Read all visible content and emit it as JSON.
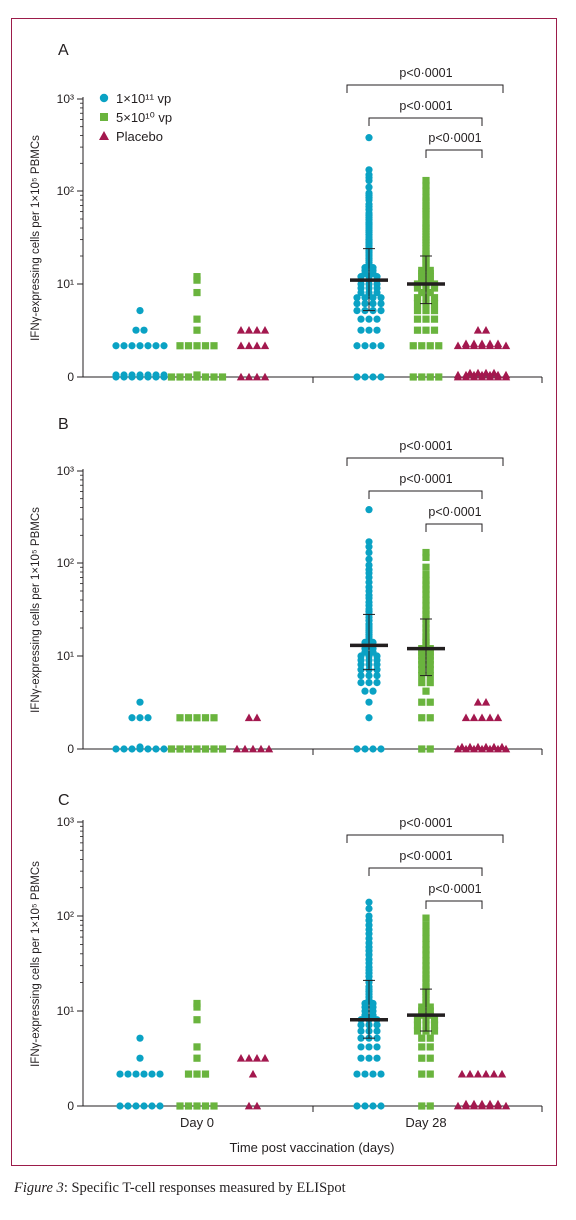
{
  "figure": {
    "caption_label": "Figure 3",
    "caption_text": ": Specific T-cell responses measured by ELISpot"
  },
  "colors": {
    "dose_high": "#0aa2c4",
    "dose_low": "#6ab43e",
    "placebo": "#a3184e",
    "frame": "#9c1c4a"
  },
  "shared": {
    "ylabel": "IFNγ-expressing cells per 1×10⁵ PBMCs",
    "xlabel": "Time post vaccination (days)",
    "categories": [
      "Day 0",
      "Day 28"
    ],
    "y_ticks": [
      {
        "value": 0,
        "label": "0"
      },
      {
        "value": 10,
        "label": "10¹"
      },
      {
        "value": 100,
        "label": "10²"
      },
      {
        "value": 1000,
        "label": "10³"
      }
    ]
  },
  "legend": [
    {
      "label": "1×10¹¹ vp",
      "marker": "circle",
      "color": "#0aa2c4"
    },
    {
      "label": "5×10¹⁰ vp",
      "marker": "square",
      "color": "#6ab43e"
    },
    {
      "label": "Placebo",
      "marker": "triangle",
      "color": "#a3184e"
    }
  ],
  "chart_data": [
    {
      "type": "scatter",
      "panel_label": "A",
      "ylabel": "IFNγ-expressing cells per 1×10⁵ PBMCs",
      "y_scale": "log (with 0)",
      "ylim": [
        0,
        1000
      ],
      "series": [
        {
          "name": "1×10¹¹ vp",
          "day": "Day 0",
          "marker": "circle",
          "values": [
            5,
            3,
            3,
            2,
            2,
            2,
            2,
            2,
            2,
            2,
            0,
            0,
            0,
            0,
            0,
            0,
            0,
            0,
            0,
            0,
            0,
            0,
            0,
            0
          ]
        },
        {
          "name": "5×10¹⁰ vp",
          "day": "Day 0",
          "marker": "square",
          "values": [
            12,
            11,
            8,
            4,
            3,
            2,
            2,
            2,
            2,
            2,
            0,
            0,
            0,
            0,
            0,
            0,
            0,
            0
          ]
        },
        {
          "name": "Placebo",
          "day": "Day 0",
          "marker": "triangle",
          "values": [
            3,
            3,
            3,
            3,
            2,
            2,
            2,
            2,
            0,
            0,
            0,
            0
          ]
        },
        {
          "name": "1×10¹¹ vp",
          "day": "Day 28",
          "marker": "circle",
          "median": 11,
          "iqr": [
            5,
            24
          ],
          "values": [
            380,
            170,
            150,
            140,
            130,
            110,
            95,
            90,
            85,
            80,
            72,
            68,
            63,
            58,
            55,
            52,
            49,
            46,
            44,
            42,
            40,
            38,
            36,
            34,
            32,
            30,
            29,
            28,
            27,
            26,
            25,
            24,
            23,
            22,
            21,
            20,
            19,
            18,
            17,
            16,
            15,
            15,
            14,
            14,
            13,
            13,
            12,
            12,
            12,
            11,
            11,
            11,
            10,
            10,
            10,
            9,
            9,
            9,
            8,
            8,
            8,
            7,
            7,
            7,
            7,
            6,
            6,
            6,
            6,
            5,
            5,
            5,
            5,
            4,
            4,
            4,
            3,
            3,
            3,
            2,
            2,
            2,
            2,
            0,
            0,
            0,
            0
          ]
        },
        {
          "name": "5×10¹⁰ vp",
          "day": "Day 28",
          "marker": "square",
          "median": 10,
          "iqr": [
            6,
            20
          ],
          "values": [
            130,
            115,
            100,
            85,
            78,
            70,
            65,
            60,
            55,
            50,
            45,
            42,
            40,
            37,
            34,
            32,
            30,
            28,
            26,
            24,
            22,
            21,
            20,
            19,
            18,
            17,
            16,
            15,
            14,
            14,
            13,
            13,
            12,
            12,
            11,
            11,
            10,
            10,
            10,
            9,
            9,
            9,
            8,
            8,
            7,
            7,
            7,
            6,
            6,
            6,
            5,
            5,
            5,
            4,
            4,
            4,
            3,
            3,
            3,
            2,
            2,
            2,
            2,
            0,
            0,
            0,
            0
          ]
        },
        {
          "name": "Placebo",
          "day": "Day 28",
          "marker": "triangle",
          "values": [
            3,
            3,
            2,
            2,
            2,
            2,
            2,
            2,
            2,
            2,
            2,
            2,
            2,
            2,
            0,
            0,
            0,
            0,
            0,
            0,
            0,
            0,
            0,
            0,
            0,
            0,
            0,
            0,
            0,
            0,
            0,
            0
          ]
        }
      ],
      "comparisons": [
        {
          "label": "p<0·0001",
          "from": "1×10¹¹ vp Day 28",
          "to": "Placebo Day 28"
        },
        {
          "label": "p<0·0001",
          "from": "1×10¹¹ vp Day 28",
          "to": "Placebo Day 28"
        },
        {
          "label": "p<0·0001",
          "from": "5×10¹⁰ vp Day 28",
          "to": "Placebo Day 28"
        }
      ]
    },
    {
      "type": "scatter",
      "panel_label": "B",
      "ylabel": "IFNγ-expressing cells per 1×10⁵ PBMCs",
      "y_scale": "log (with 0)",
      "ylim": [
        0,
        1000
      ],
      "series": [
        {
          "name": "1×10¹¹ vp",
          "day": "Day 0",
          "marker": "circle",
          "values": [
            3,
            2,
            2,
            2,
            0,
            0,
            0,
            0,
            0,
            0,
            0,
            0
          ]
        },
        {
          "name": "5×10¹⁰ vp",
          "day": "Day 0",
          "marker": "square",
          "values": [
            2,
            2,
            2,
            2,
            2,
            0,
            0,
            0,
            0,
            0,
            0,
            0
          ]
        },
        {
          "name": "Placebo",
          "day": "Day 0",
          "marker": "triangle",
          "values": [
            2,
            2,
            0,
            0,
            0,
            0,
            0
          ]
        },
        {
          "name": "1×10¹¹ vp",
          "day": "Day 28",
          "marker": "circle",
          "median": 13,
          "iqr": [
            7,
            28
          ],
          "values": [
            380,
            170,
            150,
            130,
            110,
            95,
            85,
            78,
            70,
            62,
            55,
            50,
            45,
            42,
            38,
            35,
            32,
            30,
            28,
            26,
            24,
            22,
            21,
            20,
            19,
            18,
            17,
            16,
            15,
            14,
            14,
            13,
            13,
            12,
            12,
            11,
            11,
            10,
            10,
            10,
            9,
            9,
            9,
            8,
            8,
            8,
            7,
            7,
            7,
            6,
            6,
            6,
            5,
            5,
            5,
            4,
            4,
            3,
            2,
            0,
            0,
            0,
            0
          ]
        },
        {
          "name": "5×10¹⁰ vp",
          "day": "Day 28",
          "marker": "square",
          "median": 12,
          "iqr": [
            6,
            25
          ],
          "values": [
            130,
            115,
            90,
            75,
            65,
            58,
            52,
            46,
            40,
            35,
            31,
            28,
            25,
            22,
            20,
            18,
            16,
            15,
            14,
            13,
            12,
            12,
            11,
            11,
            10,
            10,
            9,
            9,
            8,
            8,
            7,
            7,
            6,
            6,
            5,
            5,
            4,
            3,
            3,
            2,
            2,
            0,
            0
          ]
        },
        {
          "name": "Placebo",
          "day": "Day 28",
          "marker": "triangle",
          "values": [
            3,
            3,
            2,
            2,
            2,
            2,
            2,
            0,
            0,
            0,
            0,
            0,
            0,
            0,
            0,
            0,
            0,
            0,
            0,
            0
          ]
        }
      ],
      "comparisons": [
        {
          "label": "p<0·0001",
          "from": "1×10¹¹ vp Day 28",
          "to": "Placebo Day 28"
        },
        {
          "label": "p<0·0001",
          "from": "1×10¹¹ vp Day 28",
          "to": "Placebo Day 28"
        },
        {
          "label": "p<0·0001",
          "from": "5×10¹⁰ vp Day 28",
          "to": "Placebo Day 28"
        }
      ]
    },
    {
      "type": "scatter",
      "panel_label": "C",
      "ylabel": "IFNγ-expressing cells per 1×10⁵ PBMCs",
      "y_scale": "log (with 0)",
      "ylim": [
        0,
        1000
      ],
      "series": [
        {
          "name": "1×10¹¹ vp",
          "day": "Day 0",
          "marker": "circle",
          "values": [
            5,
            3,
            2,
            2,
            2,
            2,
            2,
            2,
            0,
            0,
            0,
            0,
            0,
            0
          ]
        },
        {
          "name": "5×10¹⁰ vp",
          "day": "Day 0",
          "marker": "square",
          "values": [
            12,
            11,
            8,
            4,
            3,
            2,
            2,
            2,
            0,
            0,
            0,
            0,
            0
          ]
        },
        {
          "name": "Placebo",
          "day": "Day 0",
          "marker": "triangle",
          "values": [
            3,
            3,
            3,
            3,
            2,
            0,
            0
          ]
        },
        {
          "name": "1×10¹¹ vp",
          "day": "Day 28",
          "marker": "circle",
          "median": 8,
          "iqr": [
            5,
            21
          ],
          "values": [
            140,
            120,
            100,
            90,
            80,
            72,
            65,
            58,
            52,
            47,
            43,
            39,
            35,
            32,
            29,
            27,
            25,
            23,
            21,
            20,
            18,
            17,
            16,
            15,
            14,
            13,
            12,
            12,
            11,
            11,
            10,
            10,
            9,
            9,
            8,
            8,
            8,
            7,
            7,
            7,
            6,
            6,
            6,
            5,
            5,
            5,
            4,
            4,
            4,
            3,
            3,
            3,
            2,
            2,
            2,
            2,
            0,
            0,
            0,
            0
          ]
        },
        {
          "name": "5×10¹⁰ vp",
          "day": "Day 28",
          "marker": "square",
          "median": 9,
          "iqr": [
            6,
            17
          ],
          "values": [
            95,
            80,
            68,
            58,
            50,
            44,
            39,
            34,
            30,
            27,
            24,
            22,
            20,
            18,
            17,
            16,
            15,
            14,
            13,
            12,
            11,
            11,
            10,
            10,
            9,
            9,
            8,
            8,
            8,
            7,
            7,
            7,
            6,
            6,
            6,
            5,
            5,
            4,
            4,
            3,
            3,
            2,
            2,
            0,
            0
          ]
        },
        {
          "name": "Placebo",
          "day": "Day 28",
          "marker": "triangle",
          "values": [
            2,
            2,
            2,
            2,
            2,
            2,
            0,
            0,
            0,
            0,
            0,
            0,
            0,
            0,
            0,
            0,
            0,
            0
          ]
        }
      ],
      "comparisons": [
        {
          "label": "p<0·0001",
          "from": "1×10¹¹ vp Day 28",
          "to": "Placebo Day 28"
        },
        {
          "label": "p<0·0001",
          "from": "1×10¹¹ vp Day 28",
          "to": "Placebo Day 28"
        },
        {
          "label": "p<0·0001",
          "from": "5×10¹⁰ vp Day 28",
          "to": "Placebo Day 28"
        }
      ]
    }
  ]
}
